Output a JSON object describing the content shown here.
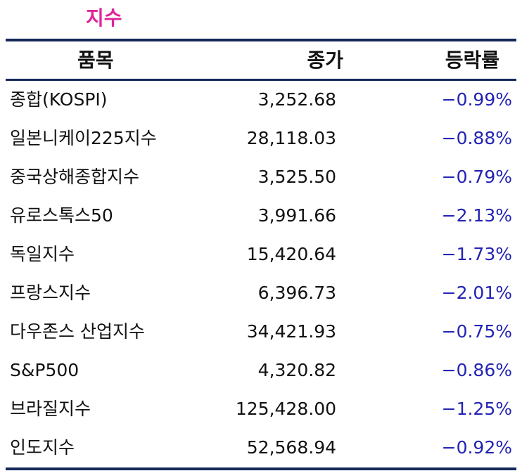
{
  "title": "지수",
  "header": {
    "name": "품목",
    "close": "종가",
    "change": "등락률"
  },
  "rows": [
    {
      "name": "종합(KOSPI)",
      "close": "3,252.68",
      "change": "−0.99%"
    },
    {
      "name": "일본니케이225지수",
      "close": "28,118.03",
      "change": "−0.88%"
    },
    {
      "name": "중국상해종합지수",
      "close": "3,525.50",
      "change": "−0.79%"
    },
    {
      "name": "유로스톡스50",
      "close": "3,991.66",
      "change": "−2.13%"
    },
    {
      "name": "독일지수",
      "close": "15,420.64",
      "change": "−1.73%"
    },
    {
      "name": "프랑스지수",
      "close": "6,396.73",
      "change": "−2.01%"
    },
    {
      "name": "다우존스 산업지수",
      "close": "34,421.93",
      "change": "−0.75%"
    },
    {
      "name": "S&P500",
      "close": "4,320.82",
      "change": "−0.86%"
    },
    {
      "name": "브라질지수",
      "close": "125,428.00",
      "change": "−1.25%"
    },
    {
      "name": "인도지수",
      "close": "52,568.94",
      "change": "−0.92%"
    }
  ],
  "colors": {
    "title": "#e0239a",
    "rule": "#16285a",
    "change_text": "#2323b4"
  }
}
